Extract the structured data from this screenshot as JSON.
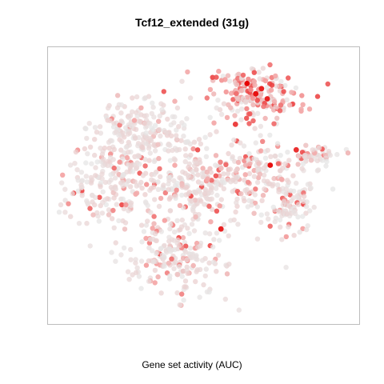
{
  "chart_data": {
    "type": "scatter",
    "title": "Tcf12_extended (31g)",
    "xlabel": "Gene set activity (AUC)",
    "ylabel": "",
    "axes_visible": false,
    "grid": false,
    "legend": "none",
    "colors": {
      "low": "#e6e6e6",
      "mid": "#f4a3a3",
      "high": "#e60000",
      "frame": "#bdbdbd"
    },
    "color_scale": "auc_low_to_high_grey_to_red",
    "xlim": [
      0,
      100
    ],
    "ylim": [
      0,
      100
    ],
    "clusters": [
      {
        "name": "top-right",
        "cx": 68,
        "cy": 85,
        "sx": 8,
        "sy": 5,
        "n": 200,
        "activity": 0.6
      },
      {
        "name": "upper-left",
        "cx": 28,
        "cy": 72,
        "sx": 8,
        "sy": 6,
        "n": 200,
        "activity": 0.15
      },
      {
        "name": "left-middle",
        "cx": 20,
        "cy": 50,
        "sx": 8,
        "sy": 9,
        "n": 220,
        "activity": 0.15
      },
      {
        "name": "center",
        "cx": 47,
        "cy": 52,
        "sx": 7,
        "sy": 8,
        "n": 200,
        "activity": 0.22
      },
      {
        "name": "center-right",
        "cx": 68,
        "cy": 55,
        "sx": 8,
        "sy": 7,
        "n": 160,
        "activity": 0.28
      },
      {
        "name": "right-small",
        "cx": 88,
        "cy": 62,
        "sx": 4,
        "sy": 2,
        "n": 60,
        "activity": 0.35
      },
      {
        "name": "right-lower",
        "cx": 80,
        "cy": 42,
        "sx": 4,
        "sy": 6,
        "n": 90,
        "activity": 0.22
      },
      {
        "name": "bottom",
        "cx": 42,
        "cy": 22,
        "sx": 8,
        "sy": 7,
        "n": 210,
        "activity": 0.18
      }
    ],
    "hotspots": [
      {
        "x": 65,
        "y": 90,
        "auc": 1.0
      },
      {
        "x": 68,
        "y": 86,
        "auc": 0.95
      },
      {
        "x": 72,
        "y": 84,
        "auc": 0.9
      },
      {
        "x": 70,
        "y": 88,
        "auc": 0.9
      },
      {
        "x": 73,
        "y": 58,
        "auc": 0.95
      },
      {
        "x": 56,
        "y": 33,
        "auc": 0.9
      },
      {
        "x": 82,
        "y": 64,
        "auc": 0.85
      },
      {
        "x": 61,
        "y": 74,
        "auc": 0.8
      }
    ]
  }
}
